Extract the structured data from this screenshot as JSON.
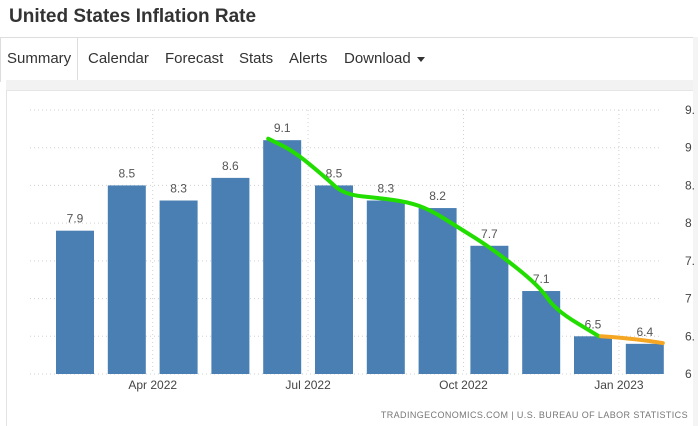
{
  "page": {
    "title": "United States Inflation Rate"
  },
  "tabs": [
    {
      "label": "Summary",
      "active": true
    },
    {
      "label": "Calendar"
    },
    {
      "label": "Forecast"
    },
    {
      "label": "Stats"
    },
    {
      "label": "Alerts"
    },
    {
      "label": "Download",
      "dropdown": true
    }
  ],
  "chart_data": {
    "type": "bar",
    "series": [
      {
        "values": [
          7.9,
          8.5,
          8.3,
          8.6,
          9.1,
          8.5,
          8.3,
          8.2,
          7.7,
          7.1,
          6.5,
          6.4
        ],
        "color": "#4a7fb3"
      }
    ],
    "data_labels": [
      "7.9",
      "8.5",
      "8.3",
      "8.6",
      "9.1",
      "8.5",
      "8.3",
      "8.2",
      "7.7",
      "7.1",
      "6.5",
      "6.4"
    ],
    "x_tick_labels": [
      {
        "index": 2,
        "label": "Apr 2022"
      },
      {
        "index": 5,
        "label": "Jul 2022"
      },
      {
        "index": 8,
        "label": "Oct 2022"
      },
      {
        "index": 11,
        "label": "Jan 2023"
      }
    ],
    "y_tick_labels": [
      "9.",
      "9",
      "8.",
      "8",
      "7.",
      "7",
      "6.",
      "6"
    ],
    "ylim": [
      6,
      9.5
    ],
    "grid": true,
    "annotations": [
      {
        "kind": "hand-drawn-trend-line",
        "color": "#22dd00",
        "from_index": 4,
        "to_index": 10
      },
      {
        "kind": "hand-drawn-trend-line",
        "color": "#f5a623",
        "from_index": 10,
        "to_index": 11
      }
    ],
    "source": "TRADINGECONOMICS.COM | U.S. BUREAU OF LABOR STATISTICS"
  }
}
